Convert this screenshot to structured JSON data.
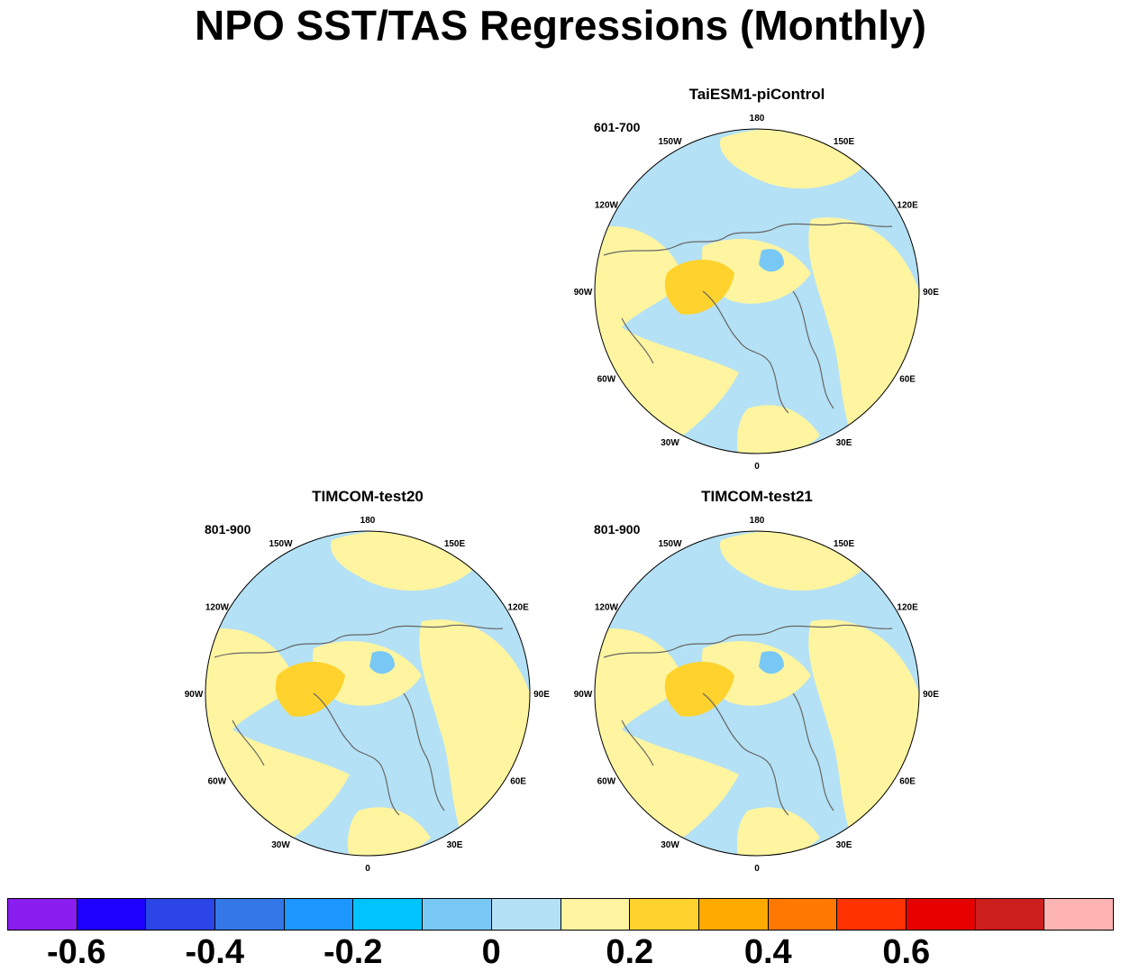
{
  "title": "NPO SST/TAS Regressions (Monthly)",
  "lon_labels": [
    "180",
    "150E",
    "120E",
    "90E",
    "60E",
    "30E",
    "0",
    "30W",
    "60W",
    "90W",
    "120W",
    "150W"
  ],
  "panels": [
    {
      "id": "taiesm1",
      "title": "TaiESM1-piControl",
      "period": "601-700"
    },
    {
      "id": "test20",
      "title": "TIMCOM-test20",
      "period": "801-900"
    },
    {
      "id": "test21",
      "title": "TIMCOM-test21",
      "period": "801-900"
    }
  ],
  "colorbar": {
    "colors": [
      "#8a1ef0",
      "#1e00ff",
      "#2b45e6",
      "#3377e8",
      "#1e96ff",
      "#00c3ff",
      "#78c8f5",
      "#b4e1f5",
      "#fff5a0",
      "#ffd22d",
      "#ffaa00",
      "#ff7800",
      "#ff3200",
      "#e60000",
      "#cd1e1e",
      "#ffb4b4"
    ],
    "labels": [
      "-0.6",
      "-0.4",
      "-0.2",
      "0",
      "0.2",
      "0.4",
      "0.6"
    ]
  },
  "map_colors": {
    "neutral_neg": "#b4e1f5",
    "neutral_pos": "#fff5a0",
    "weak_pos": "#ffd22d",
    "weak_neg": "#78c8f5",
    "coast": "#666666"
  }
}
